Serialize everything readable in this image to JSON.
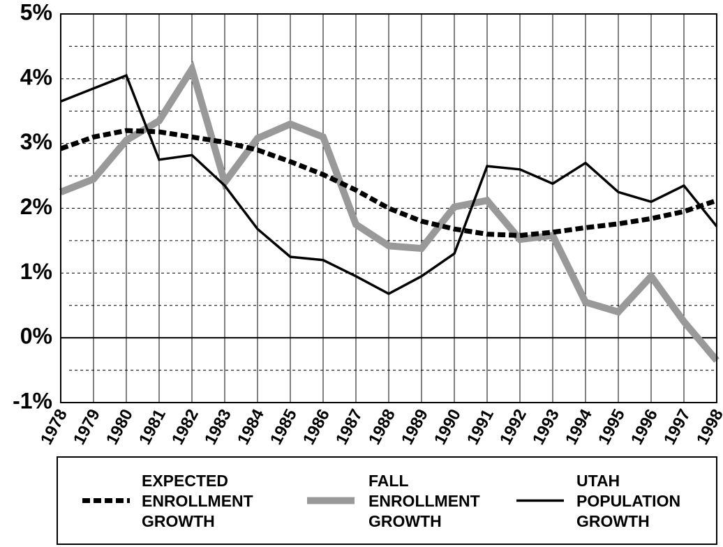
{
  "chart_data": {
    "type": "line",
    "x": [
      "1978",
      "1979",
      "1980",
      "1981",
      "1982",
      "1983",
      "1984",
      "1985",
      "1986",
      "1987",
      "1988",
      "1989",
      "1990",
      "1991",
      "1992",
      "1993",
      "1994",
      "1995",
      "1996",
      "1997",
      "1998"
    ],
    "ylim": [
      -1,
      5
    ],
    "yticks": [
      {
        "value": -1,
        "label": "-1%"
      },
      {
        "value": 0,
        "label": "0%"
      },
      {
        "value": 1,
        "label": "1%"
      },
      {
        "value": 2,
        "label": "2%"
      },
      {
        "value": 3,
        "label": "3%"
      },
      {
        "value": 4,
        "label": "4%"
      },
      {
        "value": 5,
        "label": "5%"
      }
    ],
    "yminorticks": [
      -0.5,
      0.5,
      1.5,
      2.5,
      3.5,
      4.5
    ],
    "grid": true,
    "series": [
      {
        "name": "EXPECTED ENROLLMENT GROWTH",
        "color": "#000000",
        "style": "dashed",
        "values": [
          2.92,
          3.1,
          3.2,
          3.18,
          3.1,
          3.02,
          2.9,
          2.72,
          2.52,
          2.28,
          2.0,
          1.8,
          1.68,
          1.6,
          1.58,
          1.63,
          1.7,
          1.76,
          1.84,
          1.95,
          2.12
        ]
      },
      {
        "name": "FALL ENROLLMENT GROWTH",
        "color": "#999999",
        "style": "thick",
        "values": [
          2.25,
          2.45,
          3.05,
          3.35,
          4.15,
          2.4,
          3.08,
          3.3,
          3.1,
          1.75,
          1.42,
          1.38,
          2.02,
          2.12,
          1.52,
          1.58,
          0.55,
          0.4,
          0.95,
          0.25,
          -0.35
        ]
      },
      {
        "name": "UTAH POPULATION GROWTH",
        "color": "#000000",
        "style": "solid",
        "values": [
          3.65,
          3.85,
          4.05,
          2.75,
          2.82,
          2.35,
          1.68,
          1.25,
          1.2,
          0.95,
          0.68,
          0.95,
          1.3,
          2.65,
          2.6,
          2.38,
          2.7,
          2.25,
          2.1,
          2.35,
          1.72
        ]
      }
    ]
  }
}
